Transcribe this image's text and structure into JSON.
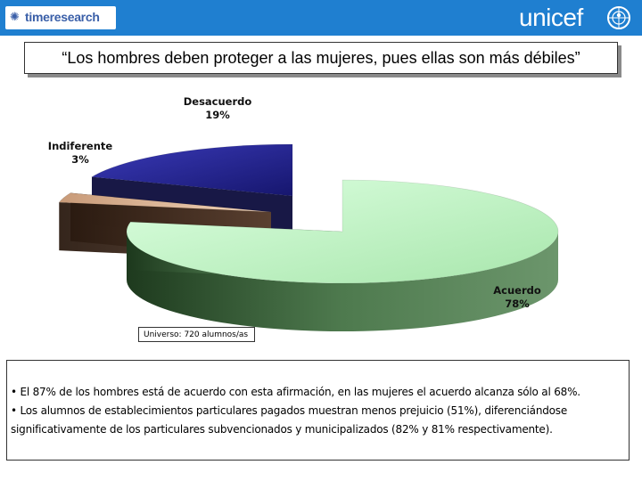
{
  "header": {
    "left_logo_text": "timeresearch",
    "right_logo_text": "unicef"
  },
  "title": "“Los hombres deben proteger a las mujeres, pues ellas son más débiles”",
  "chart_data": {
    "type": "pie",
    "title": "“Los hombres deben proteger a las mujeres, pues ellas son más débiles”",
    "slices": [
      {
        "label": "Acuerdo",
        "value": 78,
        "value_label": "78%",
        "color": "#b9f2bd"
      },
      {
        "label": "Indiferente",
        "value": 3,
        "value_label": "3%",
        "color": "#e8c2a0"
      },
      {
        "label": "Desacuerdo",
        "value": 19,
        "value_label": "19%",
        "color": "#2c2ca8"
      }
    ],
    "style": "3d-exploded"
  },
  "universe_note": "Universo: 720 alumnos/as",
  "notes": [
    "• El 87% de los hombres está de acuerdo con esta afirmación, en las mujeres el acuerdo alcanza sólo al 68%.",
    "• Los alumnos de establecimientos particulares pagados muestran menos prejuicio (51%), diferenciándose significativamente de los particulares subvencionados y municipalizados (82% y 81% respectivamente)."
  ]
}
